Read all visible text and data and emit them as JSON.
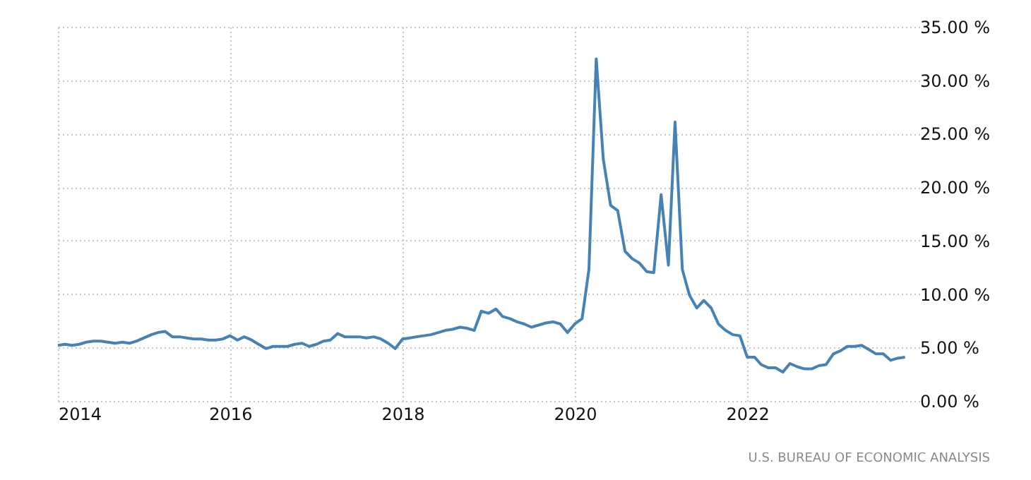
{
  "chart_data": {
    "type": "line",
    "x": [
      "2014-01",
      "2014-02",
      "2014-03",
      "2014-04",
      "2014-05",
      "2014-06",
      "2014-07",
      "2014-08",
      "2014-09",
      "2014-10",
      "2014-11",
      "2014-12",
      "2015-01",
      "2015-02",
      "2015-03",
      "2015-04",
      "2015-05",
      "2015-06",
      "2015-07",
      "2015-08",
      "2015-09",
      "2015-10",
      "2015-11",
      "2015-12",
      "2016-01",
      "2016-02",
      "2016-03",
      "2016-04",
      "2016-05",
      "2016-06",
      "2016-07",
      "2016-08",
      "2016-09",
      "2016-10",
      "2016-11",
      "2016-12",
      "2017-01",
      "2017-02",
      "2017-03",
      "2017-04",
      "2017-05",
      "2017-06",
      "2017-07",
      "2017-08",
      "2017-09",
      "2017-10",
      "2017-11",
      "2017-12",
      "2018-01",
      "2018-02",
      "2018-03",
      "2018-04",
      "2018-05",
      "2018-06",
      "2018-07",
      "2018-08",
      "2018-09",
      "2018-10",
      "2018-11",
      "2018-12",
      "2019-01",
      "2019-02",
      "2019-03",
      "2019-04",
      "2019-05",
      "2019-06",
      "2019-07",
      "2019-08",
      "2019-09",
      "2019-10",
      "2019-11",
      "2019-12",
      "2020-01",
      "2020-02",
      "2020-03",
      "2020-04",
      "2020-05",
      "2020-06",
      "2020-07",
      "2020-08",
      "2020-09",
      "2020-10",
      "2020-11",
      "2020-12",
      "2021-01",
      "2021-02",
      "2021-03",
      "2021-04",
      "2021-05",
      "2021-06",
      "2021-07",
      "2021-08",
      "2021-09",
      "2021-10",
      "2021-11",
      "2021-12",
      "2022-01",
      "2022-02",
      "2022-03",
      "2022-04",
      "2022-05",
      "2022-06",
      "2022-07",
      "2022-08",
      "2022-09",
      "2022-10",
      "2022-11",
      "2022-12",
      "2023-01",
      "2023-02",
      "2023-03",
      "2023-04",
      "2023-05",
      "2023-06",
      "2023-07",
      "2023-08",
      "2023-09",
      "2023-10",
      "2023-11"
    ],
    "series": [
      {
        "color": "#4682b4",
        "values": [
          5.2,
          5.3,
          5.2,
          5.3,
          5.5,
          5.6,
          5.6,
          5.5,
          5.4,
          5.5,
          5.4,
          5.6,
          5.9,
          6.2,
          6.4,
          6.5,
          6.0,
          6.0,
          5.9,
          5.8,
          5.8,
          5.7,
          5.7,
          5.8,
          6.1,
          5.7,
          6.0,
          5.7,
          5.3,
          4.9,
          5.1,
          5.1,
          5.1,
          5.3,
          5.4,
          5.1,
          5.3,
          5.6,
          5.7,
          6.3,
          6.0,
          6.0,
          6.0,
          5.9,
          6.0,
          5.8,
          5.4,
          4.9,
          5.8,
          5.9,
          6.0,
          6.1,
          6.2,
          6.4,
          6.6,
          6.7,
          6.9,
          6.8,
          6.6,
          8.4,
          8.2,
          8.6,
          7.9,
          7.7,
          7.4,
          7.2,
          6.9,
          7.1,
          7.3,
          7.4,
          7.2,
          6.4,
          7.2,
          7.7,
          12.3,
          32.0,
          22.6,
          18.3,
          17.8,
          14.0,
          13.3,
          12.9,
          12.1,
          12.0,
          19.3,
          12.7,
          26.1,
          12.3,
          9.9,
          8.7,
          9.4,
          8.7,
          7.2,
          6.6,
          6.2,
          6.1,
          4.1,
          4.1,
          3.4,
          3.1,
          3.1,
          2.7,
          3.5,
          3.2,
          3.0,
          3.0,
          3.3,
          3.4,
          4.4,
          4.7,
          5.1,
          5.1,
          5.2,
          4.8,
          4.4,
          4.4,
          3.8,
          4.0,
          4.1
        ]
      }
    ],
    "xlim": [
      "2014-01",
      "2024-01"
    ],
    "xticks": [
      {
        "value": "2014",
        "label": "2014"
      },
      {
        "value": "2016",
        "label": "2016"
      },
      {
        "value": "2018",
        "label": "2018"
      },
      {
        "value": "2020",
        "label": "2020"
      },
      {
        "value": "2022",
        "label": "2022"
      }
    ],
    "ylim": [
      0,
      35
    ],
    "yticks": [
      {
        "value": 0,
        "label": "0.00 %"
      },
      {
        "value": 5,
        "label": "5.00 %"
      },
      {
        "value": 10,
        "label": "10.00 %"
      },
      {
        "value": 15,
        "label": "15.00 %"
      },
      {
        "value": 20,
        "label": "20.00 %"
      },
      {
        "value": 25,
        "label": "25.00 %"
      },
      {
        "value": 30,
        "label": "30.00 %"
      },
      {
        "value": 35,
        "label": "35.00 %"
      }
    ],
    "grid": true,
    "annotations": [
      "U.S. BUREAU OF ECONOMIC ANALYSIS"
    ]
  }
}
